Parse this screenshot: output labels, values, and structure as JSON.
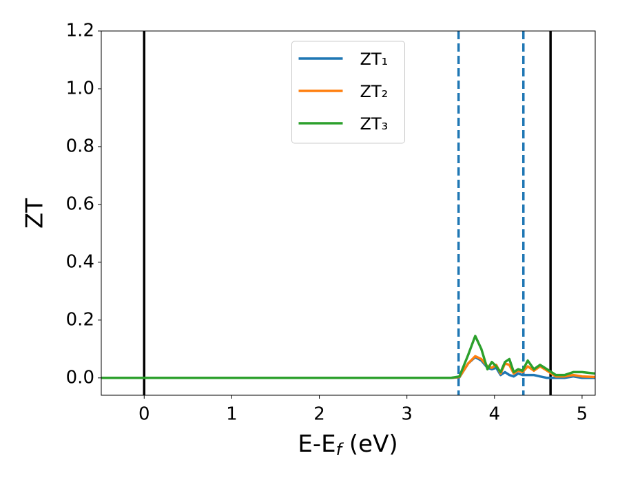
{
  "chart_data": {
    "type": "line",
    "xlabel": [
      "E-E",
      "f",
      " (eV)"
    ],
    "ylabel": "ZT",
    "x": [
      -0.49,
      3.5,
      3.6,
      3.7,
      3.78,
      3.85,
      3.92,
      3.97,
      4.02,
      4.07,
      4.12,
      4.17,
      4.22,
      4.27,
      4.32,
      4.38,
      4.45,
      4.52,
      4.6,
      4.7,
      4.8,
      4.9,
      5.0,
      5.15
    ],
    "series": [
      {
        "name": "ZT₁",
        "color": "#1f77b4",
        "values": [
          0,
          0,
          0.002,
          0.05,
          0.072,
          0.06,
          0.035,
          0.03,
          0.035,
          0.01,
          0.02,
          0.01,
          0.005,
          0.015,
          0.01,
          0.01,
          0.01,
          0.005,
          0,
          0,
          0,
          0.005,
          0,
          0
        ]
      },
      {
        "name": "ZT₂",
        "color": "#ff7f0e",
        "values": [
          0,
          0,
          0.003,
          0.05,
          0.075,
          0.065,
          0.04,
          0.035,
          0.045,
          0.015,
          0.05,
          0.045,
          0.015,
          0.025,
          0.02,
          0.04,
          0.025,
          0.04,
          0.025,
          0.005,
          0.005,
          0.01,
          0.005,
          0.003
        ]
      },
      {
        "name": "ZT₃",
        "color": "#2ca02c",
        "values": [
          0,
          0,
          0.005,
          0.08,
          0.145,
          0.1,
          0.03,
          0.055,
          0.04,
          0.02,
          0.055,
          0.065,
          0.02,
          0.03,
          0.025,
          0.06,
          0.03,
          0.045,
          0.03,
          0.01,
          0.01,
          0.02,
          0.02,
          0.015
        ]
      }
    ],
    "vlines": [
      {
        "x": 0,
        "style": "solid",
        "color": "#000000"
      },
      {
        "x": 4.64,
        "style": "solid",
        "color": "#000000"
      },
      {
        "x": 3.59,
        "style": "dashed",
        "color": "#1f77b4"
      },
      {
        "x": 4.33,
        "style": "dashed",
        "color": "#1f77b4"
      }
    ],
    "xlim": [
      -0.49,
      5.15
    ],
    "ylim": [
      -0.06,
      1.2
    ],
    "xticks": [
      0,
      1,
      2,
      3,
      4,
      5
    ],
    "yticks": [
      {
        "value": 0,
        "label": "0.0"
      },
      0.2,
      0.4,
      0.6,
      0.8,
      {
        "value": 1,
        "label": "1.0"
      },
      1.2
    ],
    "legend": "upper center",
    "grid": false
  }
}
